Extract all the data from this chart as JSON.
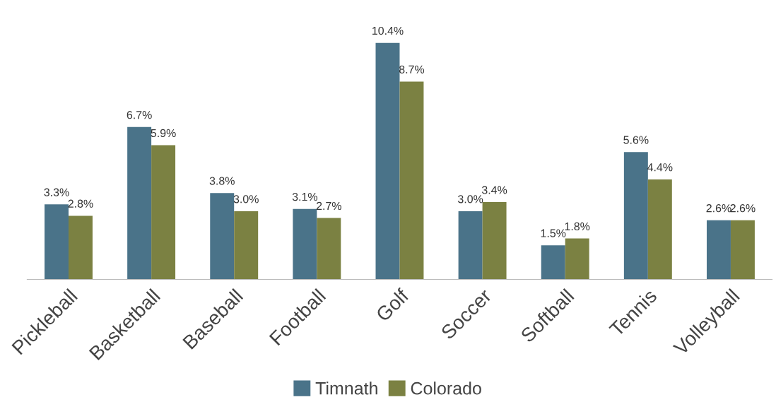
{
  "chart_data": {
    "type": "bar",
    "categories": [
      "Pickleball",
      "Basketball",
      "Baseball",
      "Football",
      "Golf",
      "Soccer",
      "Softball",
      "Tennis",
      "Volleyball"
    ],
    "series": [
      {
        "name": "Timnath",
        "color": "#4a7389",
        "values": [
          3.3,
          6.7,
          3.8,
          3.1,
          10.4,
          3.0,
          1.5,
          5.6,
          2.6
        ],
        "value_labels": [
          "3.3%",
          "6.7%",
          "3.8%",
          "3.1%",
          "10.4%",
          "3.0%",
          "1.5%",
          "5.6%",
          "2.6%"
        ]
      },
      {
        "name": "Colorado",
        "color": "#7b8142",
        "values": [
          2.8,
          5.9,
          3.0,
          2.7,
          8.7,
          3.4,
          1.8,
          4.4,
          2.6
        ],
        "value_labels": [
          "2.8%",
          "5.9%",
          "3.0%",
          "2.7%",
          "8.7%",
          "3.4%",
          "1.8%",
          "4.4%",
          "2.6%"
        ]
      }
    ],
    "legend": "bottom",
    "grid": false,
    "tick_labels": "x"
  }
}
